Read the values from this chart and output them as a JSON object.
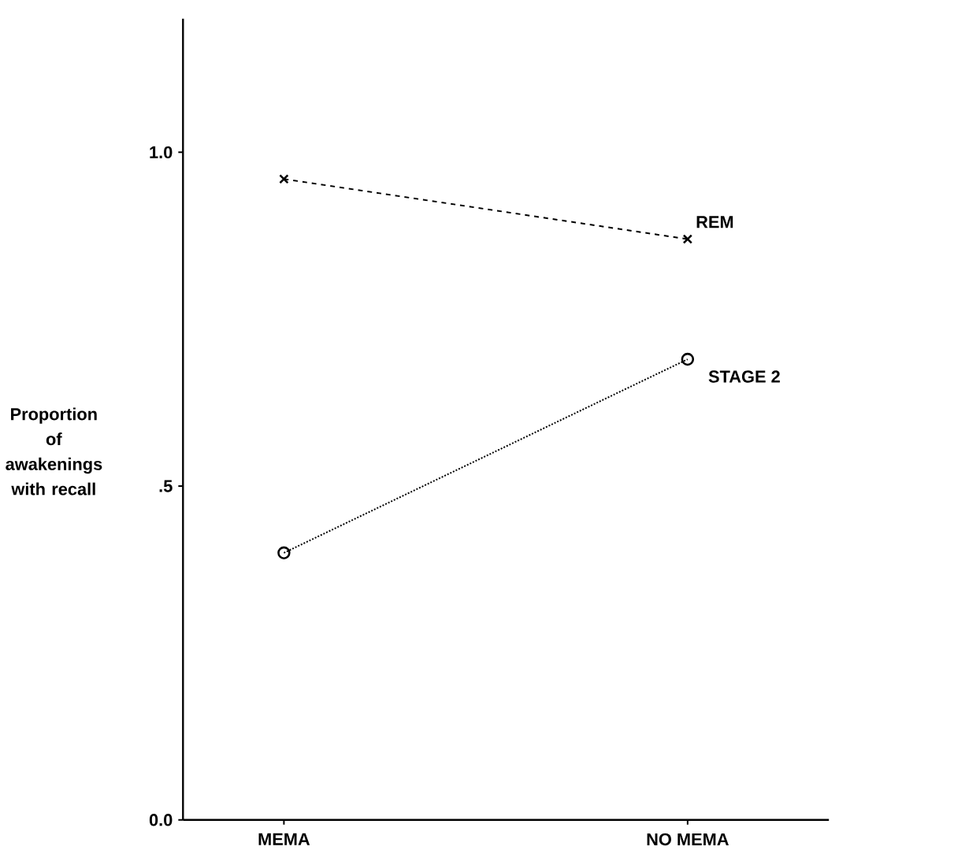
{
  "chart_data": {
    "type": "line",
    "ylabel": "Proportion of awakenings with recall",
    "categories": [
      "MEMA",
      "NO MEMA"
    ],
    "series": [
      {
        "name": "REM",
        "color": "#000000",
        "values": [
          0.96,
          0.87
        ],
        "marker": "cross",
        "line_style": "dashed"
      },
      {
        "name": "STAGE 2",
        "color": "#000000",
        "values": [
          0.4,
          0.69
        ],
        "marker": "circle",
        "line_style": "dotted"
      }
    ],
    "ylim": [
      0,
      1.2
    ],
    "yticks": [
      {
        "value": 0,
        "label": "0.0"
      },
      {
        "value": 0.5,
        "label": ".5"
      },
      {
        "value": 1,
        "label": "1.0"
      }
    ],
    "grid": false,
    "legend": false
  }
}
